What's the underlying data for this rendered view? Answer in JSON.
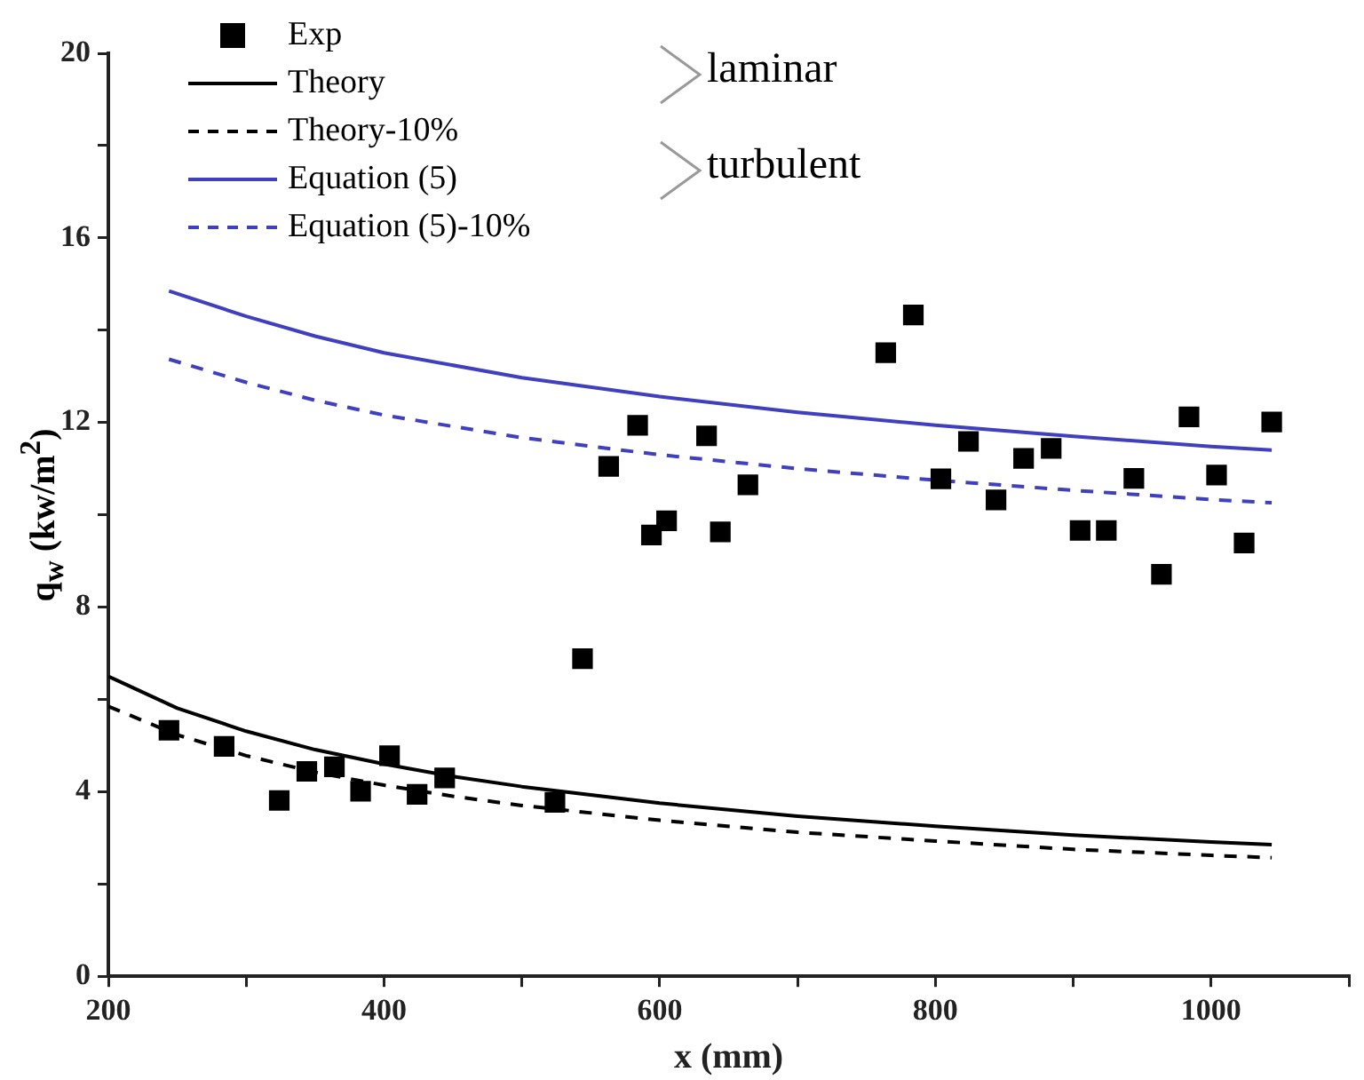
{
  "chart_data": {
    "type": "scatter",
    "xlabel": "x (mm)",
    "ylabel": "q$_{w}$ (kw/m$^{2}$)",
    "xlim": [
      200,
      1100
    ],
    "xticks": [
      200,
      {
        "value": 300,
        "label": null
      },
      400,
      {
        "value": 500,
        "label": null
      },
      600,
      {
        "value": 700,
        "label": null
      },
      800,
      {
        "value": 900,
        "label": null
      },
      1000,
      {
        "value": 1100,
        "label": null
      }
    ],
    "ylim": [
      0,
      20
    ],
    "yticks": [
      0,
      {
        "value": 2,
        "label": null
      },
      4,
      {
        "value": 6,
        "label": null
      },
      8,
      {
        "value": 10,
        "label": null
      },
      12,
      {
        "value": 14,
        "label": null
      },
      16,
      {
        "value": 18,
        "label": null
      },
      20
    ],
    "grid": false,
    "legend": "top left",
    "annotations": [
      "laminar",
      "turbulent"
    ],
    "series": [
      {
        "name": "Exp",
        "type": "scatter",
        "marker": "square",
        "color": "#000000",
        "x": [
          244,
          284,
          324,
          344,
          364,
          383,
          404,
          424,
          444,
          524,
          544,
          563,
          584,
          594,
          605,
          634,
          644,
          664,
          764,
          784,
          804,
          824,
          844,
          864,
          884,
          905,
          924,
          944,
          964,
          984,
          1004,
          1024,
          1044
        ],
        "values": [
          5.33,
          4.98,
          3.81,
          4.44,
          4.54,
          4.01,
          4.78,
          3.94,
          4.3,
          3.77,
          6.88,
          11.05,
          11.94,
          9.56,
          9.87,
          11.71,
          9.63,
          10.65,
          13.51,
          14.33,
          10.78,
          11.59,
          10.32,
          11.22,
          11.44,
          9.66,
          9.66,
          10.79,
          8.71,
          12.12,
          10.86,
          9.39,
          12.01
        ]
      },
      {
        "name": "Theory",
        "type": "line",
        "line_style": "solid",
        "color": "#000000",
        "x": [
          200,
          250,
          300,
          350,
          400,
          450,
          500,
          600,
          700,
          800,
          900,
          1000,
          1044
        ],
        "values": [
          6.5,
          5.81,
          5.31,
          4.91,
          4.6,
          4.33,
          4.11,
          3.75,
          3.47,
          3.25,
          3.06,
          2.91,
          2.85
        ]
      },
      {
        "name": "Theory-10%",
        "type": "line",
        "line_style": "dashed",
        "color": "#000000",
        "x": [
          200,
          250,
          300,
          350,
          400,
          450,
          500,
          600,
          700,
          800,
          900,
          1000,
          1044
        ],
        "values": [
          5.85,
          5.23,
          4.78,
          4.42,
          4.14,
          3.9,
          3.7,
          3.38,
          3.12,
          2.93,
          2.75,
          2.62,
          2.57
        ]
      },
      {
        "name": "Equation (5)",
        "type": "line",
        "line_style": "solid",
        "color": "#3f3fbf",
        "x": [
          244,
          300,
          350,
          400,
          500,
          600,
          700,
          800,
          900,
          1000,
          1044
        ],
        "values": [
          14.85,
          14.3,
          13.87,
          13.51,
          12.97,
          12.56,
          12.22,
          11.94,
          11.7,
          11.48,
          11.4
        ]
      },
      {
        "name": "Equation (5)-10%",
        "type": "line",
        "line_style": "dashed",
        "color": "#3f3fbf",
        "x": [
          244,
          300,
          350,
          400,
          500,
          600,
          700,
          800,
          900,
          1000,
          1044
        ],
        "values": [
          13.37,
          12.87,
          12.48,
          12.16,
          11.67,
          11.3,
          11.0,
          10.75,
          10.53,
          10.33,
          10.26
        ]
      }
    ]
  }
}
